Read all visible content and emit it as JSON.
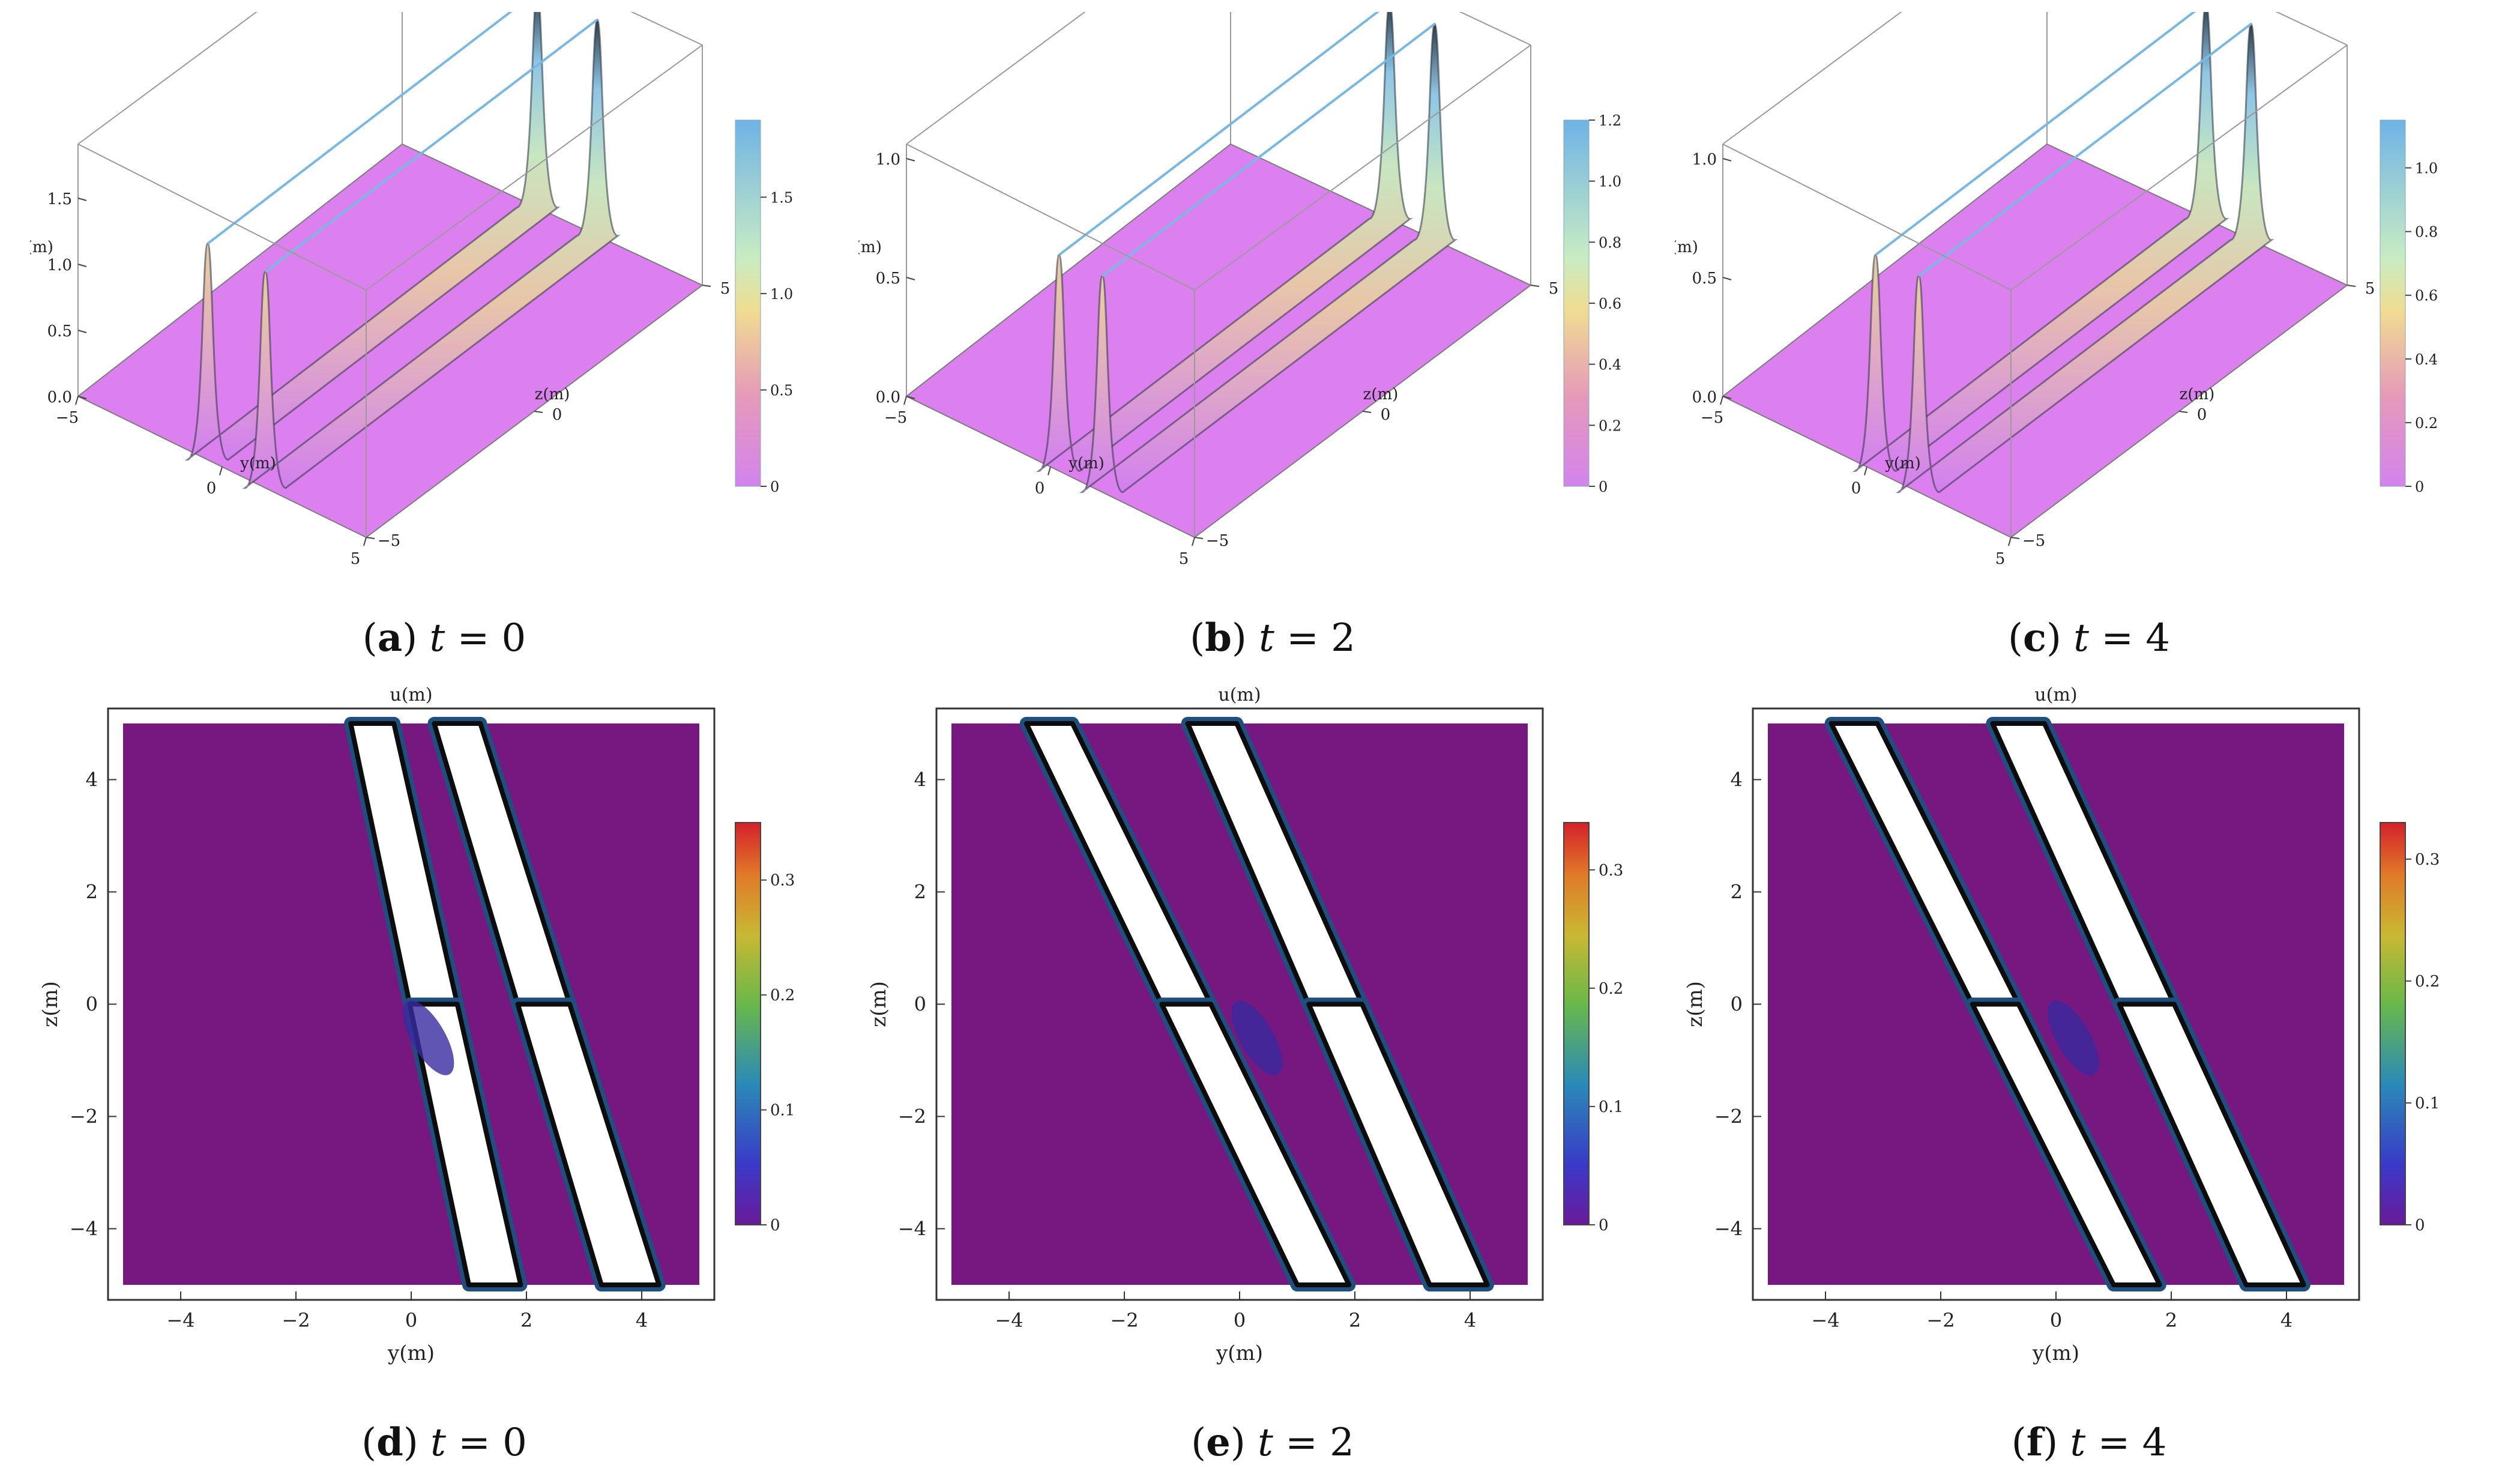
{
  "figure": {
    "panels": [
      {
        "id": "a",
        "t": "0",
        "letter": "a"
      },
      {
        "id": "b",
        "t": "2",
        "letter": "b"
      },
      {
        "id": "c",
        "t": "4",
        "letter": "c"
      },
      {
        "id": "d",
        "t": "0",
        "letter": "d"
      },
      {
        "id": "e",
        "t": "2",
        "letter": "e"
      },
      {
        "id": "f",
        "t": "4",
        "letter": "f"
      }
    ]
  },
  "chart_data": [
    {
      "type": "surface3d",
      "panel": "a",
      "caption": {
        "letter": "a",
        "var": "t",
        "value": "0"
      },
      "axis_labels": {
        "u": "u(m)",
        "y": "y(m)",
        "z": "z(m)"
      },
      "u_ticks": [
        "0.0",
        "0.5",
        "1.0",
        "1.5"
      ],
      "y_ticks": [
        "−5",
        "0",
        "5"
      ],
      "z_ticks": [
        "5",
        "0",
        "−5"
      ],
      "colorbar": {
        "ticks": [
          "0",
          "0.5",
          "1.0",
          "1.5"
        ],
        "max": 1.9
      },
      "peaks": [
        {
          "y": -0.5,
          "u": 1.9
        },
        {
          "y": 1.5,
          "u": 1.9
        }
      ],
      "colors": {
        "base": "#dc80f0",
        "peak": "#7ab8e4"
      }
    },
    {
      "type": "surface3d",
      "panel": "b",
      "caption": {
        "letter": "b",
        "var": "t",
        "value": "2"
      },
      "axis_labels": {
        "u": "u(m)",
        "y": "y(m)",
        "z": "z(m)"
      },
      "u_ticks": [
        "0.0",
        "0.5",
        "1.0"
      ],
      "y_ticks": [
        "−5",
        "0",
        "5"
      ],
      "z_ticks": [
        "5",
        "0",
        "−5"
      ],
      "colorbar": {
        "ticks": [
          "0",
          "0.2",
          "0.4",
          "0.6",
          "0.8",
          "1.0",
          "1.2"
        ],
        "max": 1.2
      },
      "peaks": [
        {
          "y": 0.3,
          "u": 1.2
        },
        {
          "y": 1.8,
          "u": 1.2
        }
      ],
      "colors": {
        "base": "#dc80f0",
        "peak": "#7ab8e4"
      }
    },
    {
      "type": "surface3d",
      "panel": "c",
      "caption": {
        "letter": "c",
        "var": "t",
        "value": "4"
      },
      "axis_labels": {
        "u": "u(m)",
        "y": "y(m)",
        "z": "z(m)"
      },
      "u_ticks": [
        "0.0",
        "0.5",
        "1.0"
      ],
      "y_ticks": [
        "−5",
        "0",
        "5"
      ],
      "z_ticks": [
        "5",
        "0",
        "−5"
      ],
      "colorbar": {
        "ticks": [
          "0",
          "0.2",
          "0.4",
          "0.6",
          "0.8",
          "1.0"
        ],
        "max": 1.15
      },
      "peaks": [
        {
          "y": 0.3,
          "u": 1.15
        },
        {
          "y": 1.8,
          "u": 1.15
        }
      ],
      "colors": {
        "base": "#dc80f0",
        "peak": "#7ab8e4"
      }
    },
    {
      "type": "contour",
      "panel": "d",
      "caption": {
        "letter": "d",
        "var": "t",
        "value": "0"
      },
      "title": "u(m)",
      "xlabel": "y(m)",
      "ylabel": "z(m)",
      "xlim": [
        -5,
        5
      ],
      "ylim": [
        -5,
        5
      ],
      "x_ticks": [
        "−4",
        "−2",
        "0",
        "2",
        "4"
      ],
      "y_ticks": [
        "4",
        "2",
        "0",
        "−2",
        "−4"
      ],
      "colorbar": {
        "ticks": [
          "0",
          "0.1",
          "0.2",
          "0.3"
        ],
        "max": 0.35
      },
      "bands_top": [
        {
          "top": -1.05,
          "bottom": -0.3
        },
        {
          "top": 0.4,
          "bottom": 1.2
        }
      ],
      "bands_bottom": [
        {
          "top": 1.0,
          "bottom": 1.9
        },
        {
          "top": 3.3,
          "bottom": 4.3
        }
      ],
      "colors": {
        "background": "#76187f"
      }
    },
    {
      "type": "contour",
      "panel": "e",
      "caption": {
        "letter": "e",
        "var": "t",
        "value": "2"
      },
      "title": "u(m)",
      "xlabel": "y(m)",
      "ylabel": "z(m)",
      "xlim": [
        -5,
        5
      ],
      "ylim": [
        -5,
        5
      ],
      "x_ticks": [
        "−4",
        "−2",
        "0",
        "2",
        "4"
      ],
      "y_ticks": [
        "4",
        "2",
        "0",
        "−2",
        "−4"
      ],
      "colorbar": {
        "ticks": [
          "0",
          "0.1",
          "0.2",
          "0.3"
        ],
        "max": 0.34
      },
      "bands_top": [
        {
          "top": -3.7,
          "bottom": -2.9
        },
        {
          "top": -0.9,
          "bottom": -0.05
        }
      ],
      "bands_bottom": [
        {
          "top": 1.0,
          "bottom": 1.9
        },
        {
          "top": 3.3,
          "bottom": 4.3
        }
      ],
      "colors": {
        "background": "#76187f"
      }
    },
    {
      "type": "contour",
      "panel": "f",
      "caption": {
        "letter": "f",
        "var": "t",
        "value": "4"
      },
      "title": "u(m)",
      "xlabel": "y(m)",
      "ylabel": "z(m)",
      "xlim": [
        -5,
        5
      ],
      "ylim": [
        -5,
        5
      ],
      "x_ticks": [
        "−4",
        "−2",
        "0",
        "2",
        "4"
      ],
      "y_ticks": [
        "4",
        "2",
        "0",
        "−2",
        "−4"
      ],
      "colorbar": {
        "ticks": [
          "0",
          "0.1",
          "0.2",
          "0.3"
        ],
        "max": 0.33
      },
      "bands_top": [
        {
          "top": -3.9,
          "bottom": -3.1
        },
        {
          "top": -1.1,
          "bottom": -0.2
        }
      ],
      "bands_bottom": [
        {
          "top": 1.0,
          "bottom": 1.8
        },
        {
          "top": 3.3,
          "bottom": 4.3
        }
      ],
      "colors": {
        "background": "#76187f"
      }
    }
  ]
}
